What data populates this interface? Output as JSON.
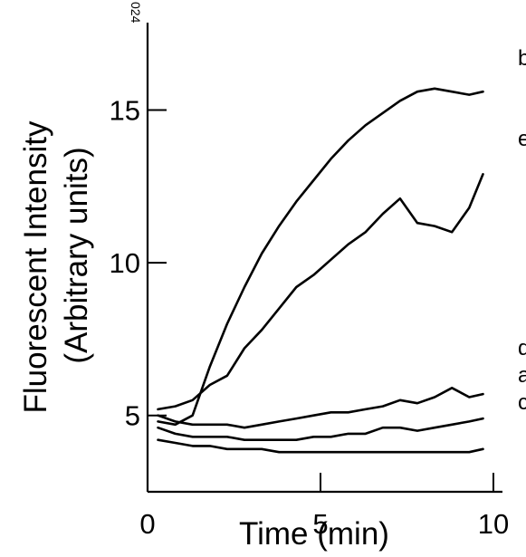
{
  "chart_data": {
    "type": "line",
    "title": "",
    "xlabel": "Time (min)",
    "ylabel_line1": "Fluorescent Intensity",
    "ylabel_line2": "(Arbitrary units)",
    "xlim": [
      0,
      10
    ],
    "ylim": [
      2.5,
      17
    ],
    "xticks": [
      0,
      5,
      10
    ],
    "yticks": [
      5,
      10,
      15
    ],
    "grid": false,
    "legend": "none",
    "corner_text": "024",
    "line_color": "#000000",
    "series": [
      {
        "label": "b",
        "x": [
          0.3,
          0.8,
          1.3,
          1.8,
          2.3,
          2.8,
          3.3,
          3.8,
          4.3,
          4.8,
          5.3,
          5.8,
          6.3,
          6.8,
          7.3,
          7.8,
          8.3,
          8.8,
          9.3,
          9.7
        ],
        "y": [
          4.8,
          4.7,
          5.0,
          6.6,
          8.0,
          9.2,
          10.3,
          11.2,
          12.0,
          12.7,
          13.4,
          14.0,
          14.5,
          14.9,
          15.3,
          15.6,
          15.7,
          15.6,
          15.5,
          15.6
        ]
      },
      {
        "label": "e",
        "x": [
          0.3,
          0.8,
          1.3,
          1.8,
          2.3,
          2.8,
          3.3,
          3.8,
          4.3,
          4.8,
          5.3,
          5.8,
          6.3,
          6.8,
          7.3,
          7.8,
          8.3,
          8.8,
          9.3,
          9.7
        ],
        "y": [
          5.2,
          5.3,
          5.5,
          6.0,
          6.3,
          7.2,
          7.8,
          8.5,
          9.2,
          9.6,
          10.1,
          10.6,
          11.0,
          11.6,
          12.1,
          11.3,
          11.2,
          11.0,
          11.8,
          12.9
        ]
      },
      {
        "label": "d",
        "x": [
          0.3,
          0.8,
          1.3,
          1.8,
          2.3,
          2.8,
          3.3,
          3.8,
          4.3,
          4.8,
          5.3,
          5.8,
          6.3,
          6.8,
          7.3,
          7.8,
          8.3,
          8.8,
          9.3,
          9.7
        ],
        "y": [
          5.0,
          4.8,
          4.7,
          4.7,
          4.7,
          4.6,
          4.7,
          4.8,
          4.9,
          5.0,
          5.1,
          5.1,
          5.2,
          5.3,
          5.5,
          5.4,
          5.6,
          5.9,
          5.6,
          5.7
        ]
      },
      {
        "label": "a",
        "x": [
          0.3,
          0.8,
          1.3,
          1.8,
          2.3,
          2.8,
          3.3,
          3.8,
          4.3,
          4.8,
          5.3,
          5.8,
          6.3,
          6.8,
          7.3,
          7.8,
          8.3,
          8.8,
          9.3,
          9.7
        ],
        "y": [
          4.6,
          4.4,
          4.3,
          4.3,
          4.3,
          4.2,
          4.2,
          4.2,
          4.2,
          4.3,
          4.3,
          4.4,
          4.4,
          4.6,
          4.6,
          4.5,
          4.6,
          4.7,
          4.8,
          4.9
        ]
      },
      {
        "label": "c",
        "x": [
          0.3,
          0.8,
          1.3,
          1.8,
          2.3,
          2.8,
          3.3,
          3.8,
          4.3,
          4.8,
          5.3,
          5.8,
          6.3,
          6.8,
          7.3,
          7.8,
          8.3,
          8.8,
          9.3,
          9.7
        ],
        "y": [
          4.2,
          4.1,
          4.0,
          4.0,
          3.9,
          3.9,
          3.9,
          3.8,
          3.8,
          3.8,
          3.8,
          3.8,
          3.8,
          3.8,
          3.8,
          3.8,
          3.8,
          3.8,
          3.8,
          3.9
        ]
      }
    ]
  }
}
